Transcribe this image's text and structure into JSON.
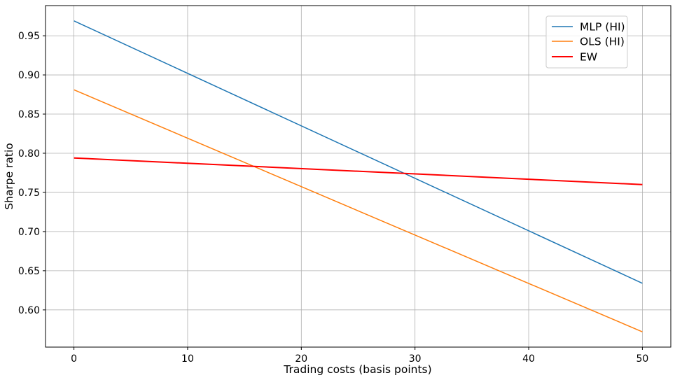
{
  "chart_data": {
    "type": "line",
    "xlabel": "Trading costs (basis points)",
    "ylabel": "Sharpe ratio",
    "xlim": [
      -2.5,
      52.5
    ],
    "ylim": [
      0.5525,
      0.9885
    ],
    "xticks": [
      0,
      10,
      20,
      30,
      40,
      50
    ],
    "yticks": [
      0.6,
      0.65,
      0.7,
      0.75,
      0.8,
      0.85,
      0.9,
      0.95
    ],
    "xtick_labels": [
      "0",
      "10",
      "20",
      "30",
      "40",
      "50"
    ],
    "ytick_labels": [
      "0.60",
      "0.65",
      "0.70",
      "0.75",
      "0.80",
      "0.85",
      "0.90",
      "0.95"
    ],
    "grid": true,
    "legend_position": "top-right",
    "series": [
      {
        "name": "MLP (HI)",
        "color": "#1f77b4",
        "x": [
          0,
          50
        ],
        "y": [
          0.969,
          0.634
        ]
      },
      {
        "name": "OLS (HI)",
        "color": "#ff7f0e",
        "x": [
          0,
          50
        ],
        "y": [
          0.881,
          0.572
        ]
      },
      {
        "name": "EW",
        "color": "#ff0000",
        "x": [
          0,
          50
        ],
        "y": [
          0.794,
          0.76
        ]
      }
    ]
  }
}
